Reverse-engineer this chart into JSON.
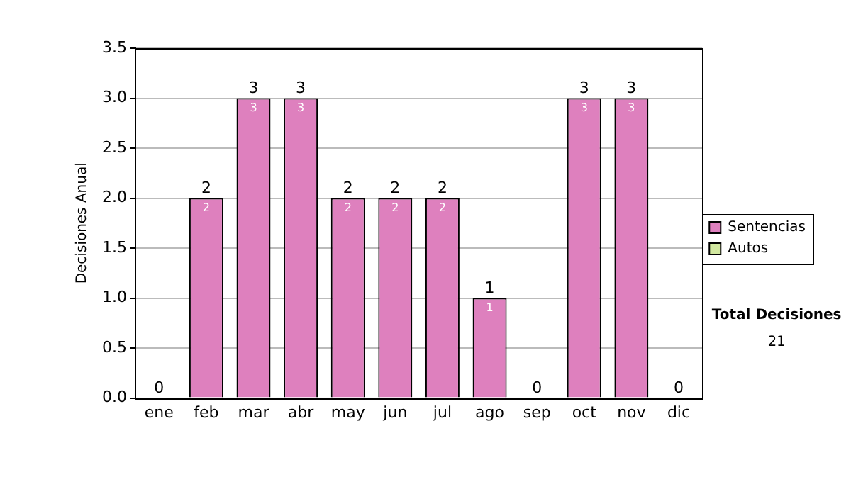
{
  "chart_data": {
    "type": "bar",
    "ylabel": "Decisiones Anual",
    "categories": [
      "ene",
      "feb",
      "mar",
      "abr",
      "may",
      "jun",
      "jul",
      "ago",
      "sep",
      "oct",
      "nov",
      "dic"
    ],
    "stacked": true,
    "series": [
      {
        "name": "Sentencias",
        "color": "#de80be",
        "values": [
          0,
          2,
          3,
          3,
          2,
          2,
          2,
          1,
          0,
          3,
          3,
          0
        ],
        "value_labels": [
          null,
          "2",
          "3",
          "3",
          "2",
          "2",
          "2",
          "1",
          null,
          "3",
          "3",
          null
        ]
      },
      {
        "name": "Autos",
        "color": "#d2e8a0",
        "values": [
          0,
          0,
          0,
          0,
          0,
          0,
          0,
          0,
          0,
          0,
          0,
          0
        ]
      }
    ],
    "totals": [
      "0",
      "2",
      "3",
      "3",
      "2",
      "2",
      "2",
      "1",
      "0",
      "3",
      "3",
      "0"
    ],
    "ylim": [
      0,
      3.5
    ],
    "yticks": [
      {
        "value": 0,
        "label": "0.0"
      },
      0.5,
      {
        "value": 1,
        "label": "1.0"
      },
      1.5,
      {
        "value": 2,
        "label": "2.0"
      },
      2.5,
      {
        "value": 3,
        "label": "3.0"
      },
      3.5
    ],
    "grid": "y",
    "legend": "right",
    "annotations": [
      "Total Decisiones",
      "21"
    ]
  }
}
